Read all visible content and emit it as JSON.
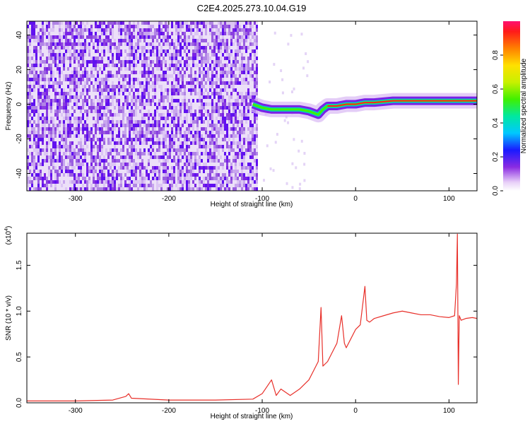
{
  "title": "C2E4.2025.273.10.04.G19",
  "chart_data": [
    {
      "type": "heatmap",
      "xlabel": "Height of straight line (km)",
      "ylabel": "Frequency (Hz)",
      "xlim": [
        -352,
        130
      ],
      "ylim": [
        -50,
        48
      ],
      "xticks": [
        -300,
        -200,
        -100,
        0,
        100
      ],
      "yticks": [
        -40,
        -20,
        0,
        20,
        40
      ],
      "xtick_labels": [
        "-300",
        "-200",
        "-100",
        "0",
        "100"
      ],
      "ytick_labels": [
        "-40",
        "-20",
        "0",
        "20",
        "40"
      ],
      "colorbar": {
        "label": "Normalized spectral amplitude",
        "range": [
          0.0,
          1.0
        ],
        "ticks": [
          0.0,
          0.2,
          0.4,
          0.6,
          0.8
        ],
        "tick_labels": [
          "0.0",
          "0.2",
          "0.4",
          "0.6",
          "0.8"
        ]
      },
      "ridge": {
        "x": [
          -110,
          -100,
          -90,
          -80,
          -70,
          -60,
          -50,
          -40,
          -35,
          -30,
          -20,
          -10,
          0,
          10,
          20,
          40,
          60,
          80,
          100,
          110,
          120,
          130
        ],
        "y": [
          0,
          -2,
          -3,
          -3,
          -3,
          -3,
          -4,
          -6,
          -3,
          -1,
          -1,
          0,
          0,
          1,
          1,
          2,
          2,
          2,
          2,
          2,
          2,
          2
        ]
      }
    },
    {
      "type": "line",
      "xlabel": "Height of straight line (km)",
      "ylabel": "SNR (10 * v/v)",
      "multiplier": "(x10",
      "multiplier_exp": "4",
      "multiplier_close": ")",
      "xlim": [
        -352,
        130
      ],
      "ylim": [
        0,
        1.85
      ],
      "xticks": [
        -300,
        -200,
        -100,
        0,
        100
      ],
      "yticks": [
        0.0,
        0.5,
        1.0,
        1.5
      ],
      "xtick_labels": [
        "-300",
        "-200",
        "-100",
        "0",
        "100"
      ],
      "ytick_labels": [
        "0.0",
        "0.5",
        "1.0",
        "1.5"
      ],
      "series": [
        {
          "color": "#e8302a",
          "x": [
            -352,
            -300,
            -260,
            -246,
            -243,
            -240,
            -200,
            -150,
            -110,
            -100,
            -90,
            -85,
            -80,
            -70,
            -60,
            -50,
            -45,
            -40,
            -37,
            -35,
            -30,
            -25,
            -20,
            -15,
            -12,
            -10,
            -5,
            0,
            5,
            10,
            12,
            15,
            20,
            30,
            40,
            50,
            60,
            70,
            80,
            90,
            100,
            106,
            108,
            109,
            110,
            111,
            113,
            118,
            125,
            130
          ],
          "y": [
            0.02,
            0.02,
            0.03,
            0.07,
            0.1,
            0.05,
            0.03,
            0.03,
            0.04,
            0.1,
            0.25,
            0.08,
            0.15,
            0.08,
            0.15,
            0.25,
            0.35,
            0.45,
            1.04,
            0.4,
            0.45,
            0.55,
            0.65,
            0.95,
            0.65,
            0.6,
            0.7,
            0.8,
            0.85,
            1.27,
            0.9,
            0.88,
            0.92,
            0.95,
            0.98,
            1.0,
            0.98,
            0.96,
            0.96,
            0.94,
            0.93,
            0.95,
            1.3,
            1.84,
            0.2,
            0.95,
            0.9,
            0.92,
            0.93,
            0.92
          ]
        }
      ]
    }
  ]
}
